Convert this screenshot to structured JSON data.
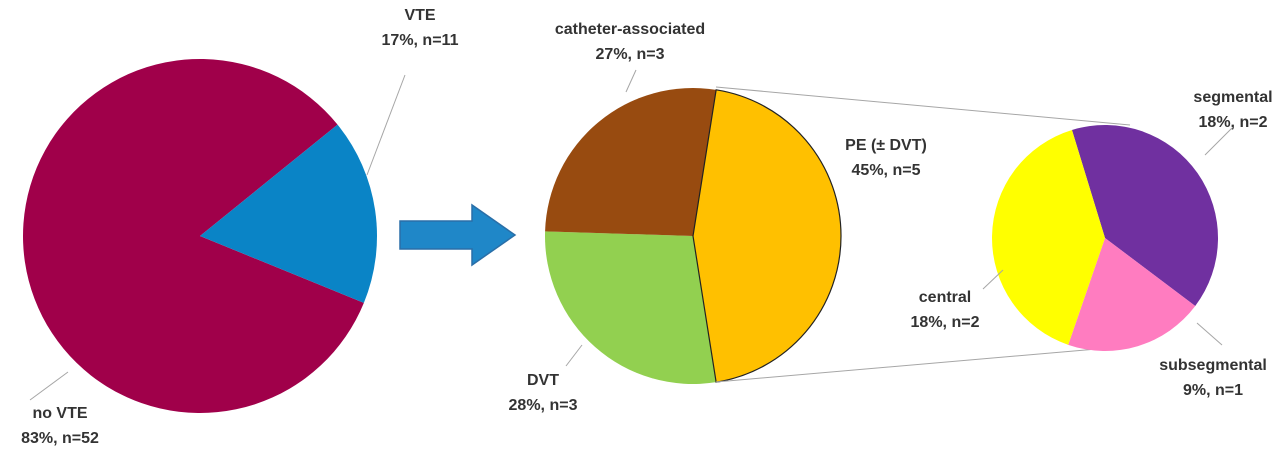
{
  "chart_data": [
    {
      "type": "pie",
      "slices": [
        {
          "name": "no VTE",
          "percent": 83,
          "n": 52,
          "label_line1": "no VTE",
          "label_line2": "83%, n=52",
          "color": "#a0004a"
        },
        {
          "name": "VTE",
          "percent": 17,
          "n": 11,
          "label_line1": "VTE",
          "label_line2": "17%, n=11",
          "color": "#0a84c6"
        }
      ]
    },
    {
      "type": "pie",
      "slices": [
        {
          "name": "PE (± DVT)",
          "percent": 45,
          "n": 5,
          "label_line1": "PE (± DVT)",
          "label_line2": "45%, n=5",
          "color": "#ffc000"
        },
        {
          "name": "DVT",
          "percent": 28,
          "n": 3,
          "label_line1": "DVT",
          "label_line2": "28%, n=3",
          "color": "#92d050"
        },
        {
          "name": "catheter-associated",
          "percent": 27,
          "n": 3,
          "label_line1": "catheter-associated",
          "label_line2": "27%, n=3",
          "color": "#984b10"
        }
      ]
    },
    {
      "type": "pie",
      "slices": [
        {
          "name": "segmental",
          "percent": 18,
          "n": 2,
          "label_line1": "segmental",
          "label_line2": "18%, n=2",
          "color": "#7030a0"
        },
        {
          "name": "subsegmental",
          "percent": 9,
          "n": 1,
          "label_line1": "subsegmental",
          "label_line2": "9%, n=1",
          "color": "#ff7cc0"
        },
        {
          "name": "central",
          "percent": 18,
          "n": 2,
          "label_line1": "central",
          "label_line2": "18%, n=2",
          "color": "#ffff00"
        }
      ]
    }
  ],
  "arrow_color": "#1f87c8"
}
